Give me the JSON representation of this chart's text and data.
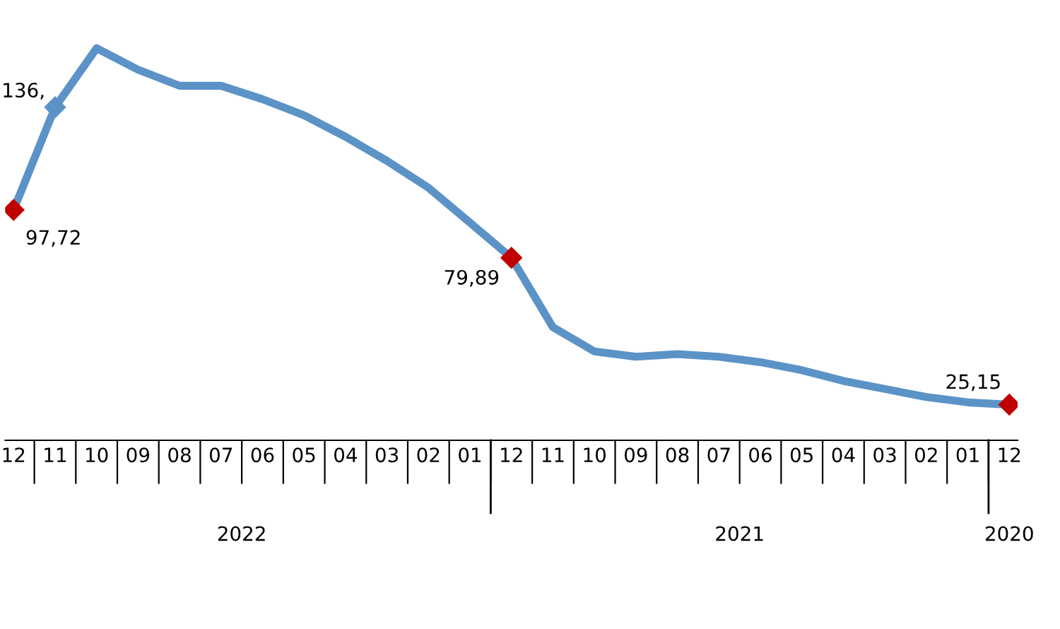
{
  "chart_data": {
    "type": "line",
    "categories": [
      "12",
      "11",
      "10",
      "09",
      "08",
      "07",
      "06",
      "05",
      "04",
      "03",
      "02",
      "01",
      "12",
      "11",
      "10",
      "09",
      "08",
      "07",
      "06",
      "05",
      "04",
      "03",
      "02",
      "01",
      "12"
    ],
    "series": [
      {
        "color": "#5b93c7",
        "values": [
          97.72,
          136,
          158,
          150,
          144,
          144,
          139,
          133,
          125,
          116,
          106,
          93,
          79.89,
          54,
          45,
          43,
          44,
          43,
          41,
          38,
          34,
          31,
          28,
          26,
          25.15
        ],
        "colors": [
          "#c00000",
          "#5b93c7",
          null,
          null,
          null,
          null,
          null,
          null,
          null,
          null,
          null,
          null,
          "#c00000",
          null,
          null,
          null,
          null,
          null,
          null,
          null,
          null,
          null,
          null,
          null,
          "#c00000"
        ],
        "value_labels": [
          "97,72",
          "136,",
          null,
          null,
          null,
          null,
          null,
          null,
          null,
          null,
          null,
          null,
          "79,89",
          null,
          null,
          null,
          null,
          null,
          null,
          null,
          null,
          null,
          null,
          null,
          "25,15"
        ]
      }
    ],
    "tick_labels": "x",
    "line_style": "solid",
    "grid": false,
    "legend": false,
    "annotations": [
      "2022",
      "2021",
      "2020"
    ]
  }
}
